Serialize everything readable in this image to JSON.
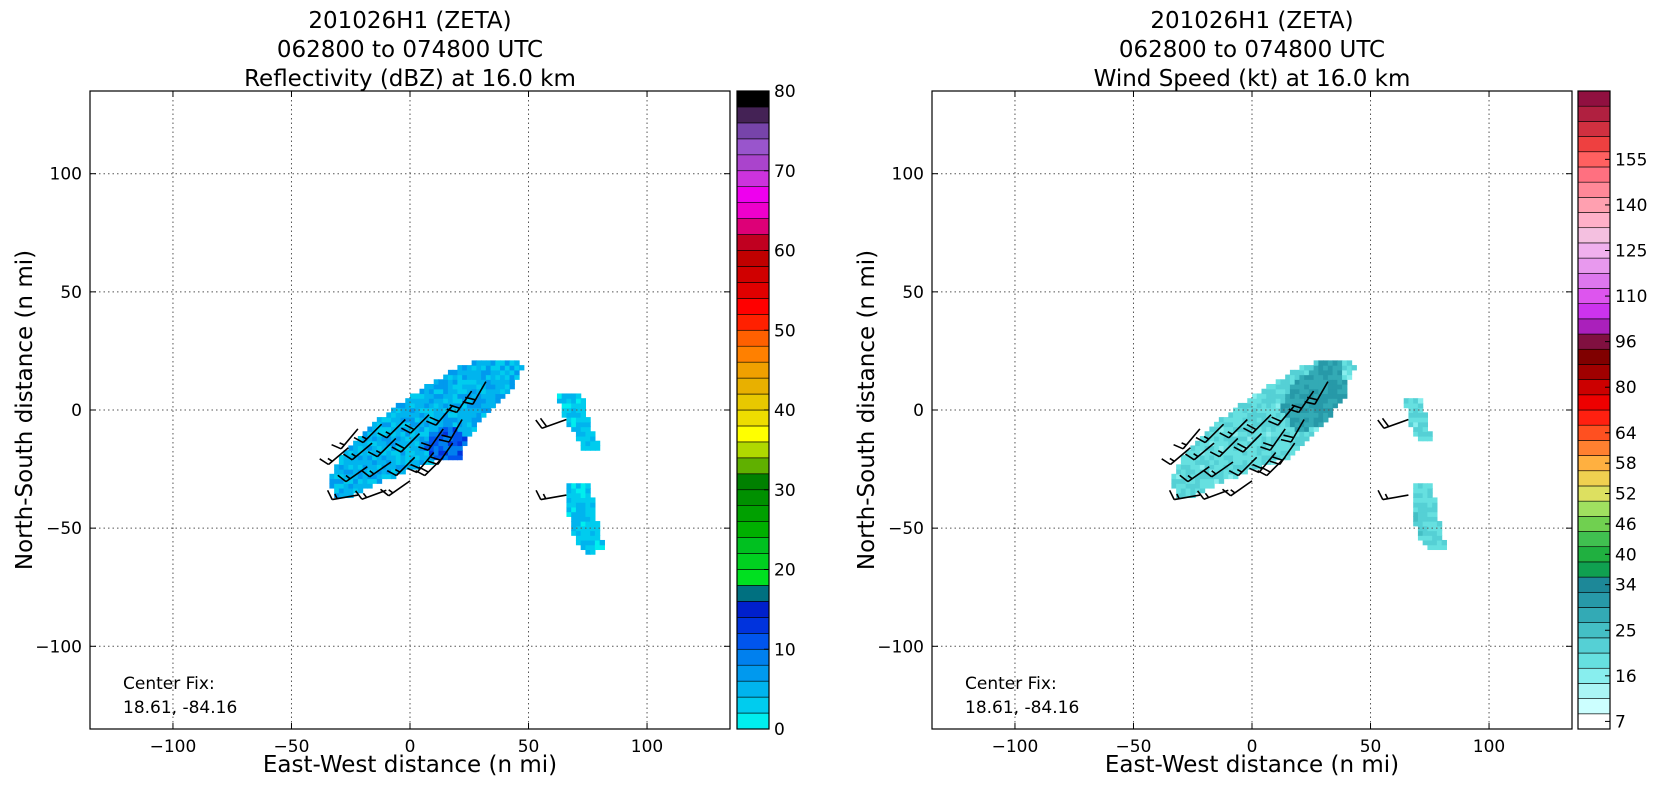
{
  "panels": [
    {
      "title_lines": [
        "201026H1 (ZETA)",
        "062800 to 074800 UTC",
        "Reflectivity (dBZ) at 16.0 km"
      ],
      "xlabel": "East-West distance (n mi)",
      "ylabel": "North-South distance (n mi)",
      "center_fix_lines": [
        "Center Fix:",
        "18.61, -84.16"
      ],
      "colorbar_ticks": [
        "0",
        "10",
        "20",
        "30",
        "40",
        "50",
        "60",
        "70",
        "80"
      ]
    },
    {
      "title_lines": [
        "201026H1 (ZETA)",
        "062800 to 074800 UTC",
        "Wind Speed (kt) at 16.0 km"
      ],
      "xlabel": "East-West distance (n mi)",
      "ylabel": "North-South distance (n mi)",
      "center_fix_lines": [
        "Center Fix:",
        "18.61, -84.16"
      ],
      "colorbar_ticks": [
        "7",
        "16",
        "25",
        "34",
        "40",
        "46",
        "52",
        "58",
        "64",
        "80",
        "96",
        "110",
        "125",
        "140",
        "155"
      ]
    }
  ],
  "chart_data": [
    {
      "type": "heatmap",
      "title": "201026H1 (ZETA) 062800 to 074800 UTC Reflectivity (dBZ) at 16.0 km",
      "xlabel": "East-West distance (n mi)",
      "ylabel": "North-South distance (n mi)",
      "xlim": [
        -135,
        135
      ],
      "ylim": [
        -135,
        135
      ],
      "xticks": [
        -100,
        -50,
        0,
        50,
        100
      ],
      "yticks": [
        -100,
        -50,
        0,
        50,
        100
      ],
      "grid": true,
      "colorbar": {
        "label": "dBZ",
        "min": 0,
        "max": 80,
        "step": 2.5,
        "tick_values": [
          0,
          10,
          20,
          30,
          40,
          50,
          60,
          70,
          80
        ],
        "colors": [
          "#00eeee",
          "#00ccee",
          "#00b4ee",
          "#0099ee",
          "#0080ee",
          "#0055ee",
          "#0033dd",
          "#0020cc",
          "#007080",
          "#00e020",
          "#00d020",
          "#00c020",
          "#00b000",
          "#00a000",
          "#009000",
          "#008000",
          "#60b000",
          "#b0d800",
          "#ffff00",
          "#eedd00",
          "#e8c800",
          "#e8b000",
          "#f0a000",
          "#ff8000",
          "#ff6000",
          "#ff2000",
          "#ff0000",
          "#e00000",
          "#d00000",
          "#c00000",
          "#c00020",
          "#dd0077",
          "#ee00cc",
          "#ee00ee",
          "#cc33dd",
          "#aa44cc",
          "#9955cc",
          "#7744aa",
          "#442255",
          "#000000"
        ]
      },
      "echo_regions": [
        {
          "name": "main band",
          "polygon": [
            [
              -34,
              -30
            ],
            [
              -28,
              -18
            ],
            [
              -18,
              -7
            ],
            [
              -8,
              0
            ],
            [
              2,
              7
            ],
            [
              12,
              13
            ],
            [
              22,
              19
            ],
            [
              32,
              22
            ],
            [
              40,
              22
            ],
            [
              48,
              19
            ],
            [
              44,
              10
            ],
            [
              36,
              2
            ],
            [
              28,
              -7
            ],
            [
              22,
              -14
            ],
            [
              16,
              -20
            ],
            [
              6,
              -23
            ],
            [
              -6,
              -28
            ],
            [
              -16,
              -32
            ],
            [
              -24,
              -36
            ],
            [
              -32,
              -37
            ]
          ],
          "typical_dbz": 5
        },
        {
          "name": "core",
          "polygon": [
            [
              8,
              -10
            ],
            [
              18,
              -6
            ],
            [
              24,
              -12
            ],
            [
              22,
              -20
            ],
            [
              12,
              -22
            ],
            [
              6,
              -16
            ]
          ],
          "typical_dbz": 12
        },
        {
          "name": "east band north",
          "polygon": [
            [
              62,
              8
            ],
            [
              72,
              8
            ],
            [
              76,
              -6
            ],
            [
              80,
              -16
            ],
            [
              74,
              -18
            ],
            [
              68,
              -8
            ],
            [
              64,
              0
            ]
          ],
          "typical_dbz": 3
        },
        {
          "name": "east band south",
          "polygon": [
            [
              66,
              -30
            ],
            [
              76,
              -30
            ],
            [
              78,
              -44
            ],
            [
              82,
              -58
            ],
            [
              76,
              -62
            ],
            [
              70,
              -56
            ],
            [
              66,
              -42
            ]
          ],
          "typical_dbz": 3
        }
      ],
      "center_fix": "18.61, -84.16"
    },
    {
      "type": "heatmap",
      "title": "201026H1 (ZETA) 062800 to 074800 UTC Wind Speed (kt) at 16.0 km",
      "xlabel": "East-West distance (n mi)",
      "ylabel": "North-South distance (n mi)",
      "xlim": [
        -135,
        135
      ],
      "ylim": [
        -135,
        135
      ],
      "xticks": [
        -100,
        -50,
        0,
        50,
        100
      ],
      "yticks": [
        -100,
        -50,
        0,
        50,
        100
      ],
      "grid": true,
      "colorbar": {
        "label": "kt",
        "tick_labels": [
          "7",
          "16",
          "25",
          "34",
          "40",
          "46",
          "52",
          "58",
          "64",
          "80",
          "96",
          "110",
          "125",
          "140",
          "155"
        ],
        "tick_bin_index": [
          0,
          3,
          6,
          9,
          11,
          13,
          15,
          17,
          19,
          22,
          25,
          28,
          31,
          34,
          37
        ],
        "colors": [
          "#ffffff",
          "#ccffff",
          "#aaf5f5",
          "#88eeee",
          "#66e0e0",
          "#55d0d5",
          "#44bfc5",
          "#33aab5",
          "#2799a8",
          "#1d8898",
          "#10a050",
          "#20b040",
          "#40c050",
          "#70d050",
          "#a0e060",
          "#dde060",
          "#f0d050",
          "#ffb040",
          "#ff8030",
          "#ff5020",
          "#ff2010",
          "#ee0000",
          "#cc0000",
          "#a00000",
          "#800000",
          "#801040",
          "#aa20bb",
          "#cc33ee",
          "#dd55ee",
          "#dd77ee",
          "#e899ee",
          "#f0b0ee",
          "#f4c0e0",
          "#ffb0c8",
          "#ffa0b0",
          "#ff8898",
          "#ff7080",
          "#ff6060",
          "#ee4040",
          "#d03040",
          "#b02040",
          "#901040"
        ]
      },
      "speed_regions": [
        {
          "name": "main band",
          "polygon": [
            [
              -34,
              -30
            ],
            [
              -28,
              -18
            ],
            [
              -18,
              -7
            ],
            [
              -8,
              0
            ],
            [
              2,
              7
            ],
            [
              12,
              13
            ],
            [
              22,
              19
            ],
            [
              32,
              22
            ],
            [
              40,
              22
            ],
            [
              44,
              19
            ],
            [
              40,
              10
            ],
            [
              34,
              2
            ],
            [
              28,
              -7
            ],
            [
              22,
              -14
            ],
            [
              16,
              -20
            ],
            [
              6,
              -23
            ],
            [
              -6,
              -28
            ],
            [
              -16,
              -32
            ],
            [
              -24,
              -36
            ],
            [
              -32,
              -37
            ]
          ],
          "typical_kt": 14
        },
        {
          "name": "northeast maximum",
          "polygon": [
            [
              16,
              10
            ],
            [
              28,
              20
            ],
            [
              38,
              22
            ],
            [
              40,
              6
            ],
            [
              30,
              -6
            ],
            [
              20,
              -10
            ],
            [
              12,
              0
            ]
          ],
          "typical_kt": 24
        },
        {
          "name": "east band north",
          "polygon": [
            [
              64,
              6
            ],
            [
              72,
              6
            ],
            [
              74,
              -6
            ],
            [
              76,
              -12
            ],
            [
              70,
              -12
            ],
            [
              66,
              -4
            ]
          ],
          "typical_kt": 14
        },
        {
          "name": "east band south",
          "polygon": [
            [
              68,
              -30
            ],
            [
              76,
              -30
            ],
            [
              78,
              -44
            ],
            [
              82,
              -58
            ],
            [
              76,
              -60
            ],
            [
              70,
              -54
            ],
            [
              68,
              -42
            ]
          ],
          "typical_kt": 15
        }
      ],
      "center_fix": "18.61, -84.16"
    }
  ],
  "wind_barbs": [
    [
      -22,
      -8,
      220,
      15
    ],
    [
      -12,
      -6,
      225,
      15
    ],
    [
      -2,
      -4,
      225,
      15
    ],
    [
      8,
      -2,
      225,
      20
    ],
    [
      18,
      2,
      220,
      20
    ],
    [
      26,
      8,
      215,
      20
    ],
    [
      32,
      12,
      210,
      20
    ],
    [
      -26,
      -16,
      230,
      15
    ],
    [
      -16,
      -14,
      230,
      15
    ],
    [
      -6,
      -12,
      225,
      15
    ],
    [
      4,
      -10,
      225,
      20
    ],
    [
      14,
      -8,
      215,
      20
    ],
    [
      22,
      -4,
      210,
      20
    ],
    [
      -18,
      -24,
      235,
      15
    ],
    [
      -8,
      -22,
      235,
      15
    ],
    [
      2,
      -20,
      225,
      15
    ],
    [
      10,
      -18,
      220,
      20
    ],
    [
      18,
      -14,
      215,
      20
    ],
    [
      -22,
      -36,
      260,
      15
    ],
    [
      -10,
      -34,
      250,
      15
    ],
    [
      0,
      -30,
      235,
      15
    ],
    [
      14,
      -20,
      225,
      20
    ],
    [
      66,
      -4,
      250,
      20
    ],
    [
      66,
      -36,
      260,
      15
    ]
  ]
}
